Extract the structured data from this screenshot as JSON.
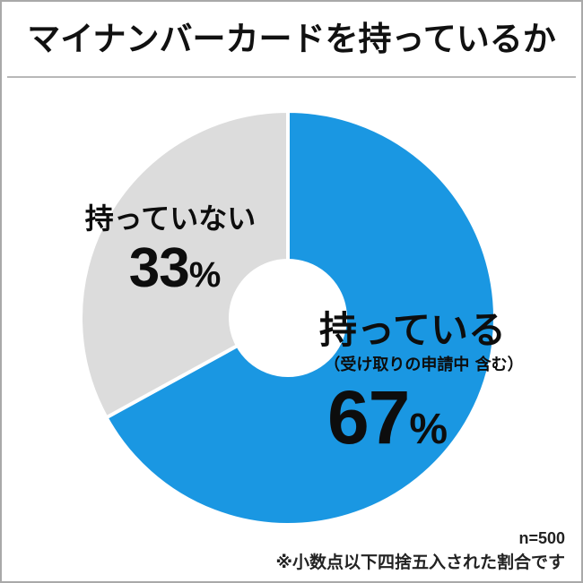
{
  "chart_data": {
    "type": "pie",
    "donut": true,
    "title": "マイナンバーカードを持っているか",
    "slices": [
      {
        "label": "持っている",
        "note": "（受け取りの申請中 含む）",
        "value": 67,
        "unit": "%",
        "color": "#1a97e2"
      },
      {
        "label": "持っていない",
        "value": 33,
        "unit": "%",
        "color": "#dcdcdc"
      }
    ]
  },
  "footer": {
    "sample_size": "n=500",
    "note": "※小数点以下四捨五入された割合です"
  }
}
